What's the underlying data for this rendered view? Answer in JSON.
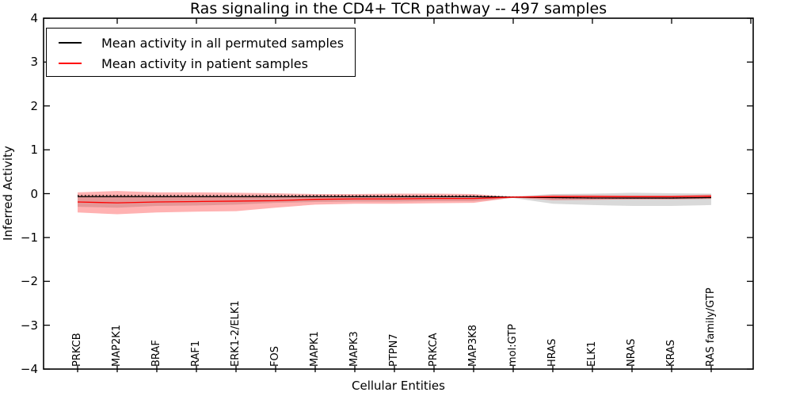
{
  "legend": {
    "items": [
      {
        "label": "Mean activity in all permuted samples",
        "color": "#000000"
      },
      {
        "label": "Mean activity in patient samples",
        "color": "#ff0000"
      }
    ]
  },
  "chart_data": {
    "type": "line",
    "title": "Ras signaling in the CD4+ TCR pathway -- 497 samples",
    "xlabel": "Cellular Entities",
    "ylabel": "Inferred Activity",
    "ylim": [
      -4,
      4
    ],
    "yticks": [
      4,
      3,
      2,
      1,
      0,
      -1,
      -2,
      -3,
      -4
    ],
    "ytick_labels": [
      "4",
      "3",
      "2",
      "1",
      "0",
      "−1",
      "−2",
      "−3",
      "−4"
    ],
    "grid": false,
    "legend_position": "upper left",
    "categories": [
      "PRKCB",
      "MAP2K1",
      "BRAF",
      "RAF1",
      "ERK1-2/ELK1",
      "FOS",
      "MAPK1",
      "MAPK3",
      "PTPN7",
      "PRKCA",
      "MAP3K8",
      "mol:GTP",
      "HRAS",
      "ELK1",
      "NRAS",
      "KRAS",
      "RAS family/GTP"
    ],
    "series": [
      {
        "name": "Mean activity in all permuted samples",
        "type": "line",
        "color": "#000000",
        "values": [
          -0.07,
          -0.07,
          -0.07,
          -0.07,
          -0.07,
          -0.07,
          -0.07,
          -0.07,
          -0.07,
          -0.07,
          -0.07,
          -0.08,
          -0.09,
          -0.1,
          -0.1,
          -0.1,
          -0.09
        ]
      },
      {
        "name": "Permuted samples std band",
        "type": "band",
        "color": "rgba(0,0,0,0.15)",
        "upper": [
          -0.03,
          -0.03,
          -0.04,
          -0.04,
          -0.04,
          -0.05,
          -0.05,
          -0.05,
          -0.05,
          -0.05,
          -0.05,
          -0.065,
          -0.01,
          0.0,
          0.02,
          0.01,
          0.0
        ],
        "lower": [
          -0.3,
          -0.32,
          -0.28,
          -0.27,
          -0.25,
          -0.21,
          -0.19,
          -0.18,
          -0.18,
          -0.17,
          -0.17,
          -0.1,
          -0.23,
          -0.26,
          -0.28,
          -0.28,
          -0.26
        ]
      },
      {
        "name": "Mean activity in patient samples",
        "type": "line",
        "color": "#ff0000",
        "values": [
          -0.19,
          -0.21,
          -0.19,
          -0.18,
          -0.17,
          -0.16,
          -0.13,
          -0.12,
          -0.12,
          -0.11,
          -0.11,
          -0.08,
          -0.07,
          -0.07,
          -0.07,
          -0.07,
          -0.06
        ]
      },
      {
        "name": "Patient samples std band",
        "type": "band",
        "color": "rgba(255,0,0,0.30)",
        "upper": [
          0.03,
          0.06,
          0.03,
          0.03,
          0.02,
          0.01,
          -0.01,
          -0.01,
          0.0,
          0.0,
          -0.01,
          -0.07,
          -0.03,
          -0.03,
          -0.04,
          -0.04,
          -0.02
        ],
        "lower": [
          -0.43,
          -0.47,
          -0.43,
          -0.41,
          -0.4,
          -0.32,
          -0.25,
          -0.23,
          -0.23,
          -0.22,
          -0.21,
          -0.09,
          -0.15,
          -0.14,
          -0.13,
          -0.13,
          -0.12
        ]
      },
      {
        "name": "Permuted baseline (dotted)",
        "type": "dotted",
        "color": "#000000",
        "values": [
          -0.04,
          -0.04,
          -0.04,
          -0.04,
          -0.04,
          -0.04,
          -0.04,
          -0.045,
          -0.045,
          -0.05,
          -0.05,
          -0.075,
          -0.09,
          -0.1,
          -0.1,
          -0.1,
          -0.09
        ]
      }
    ]
  }
}
